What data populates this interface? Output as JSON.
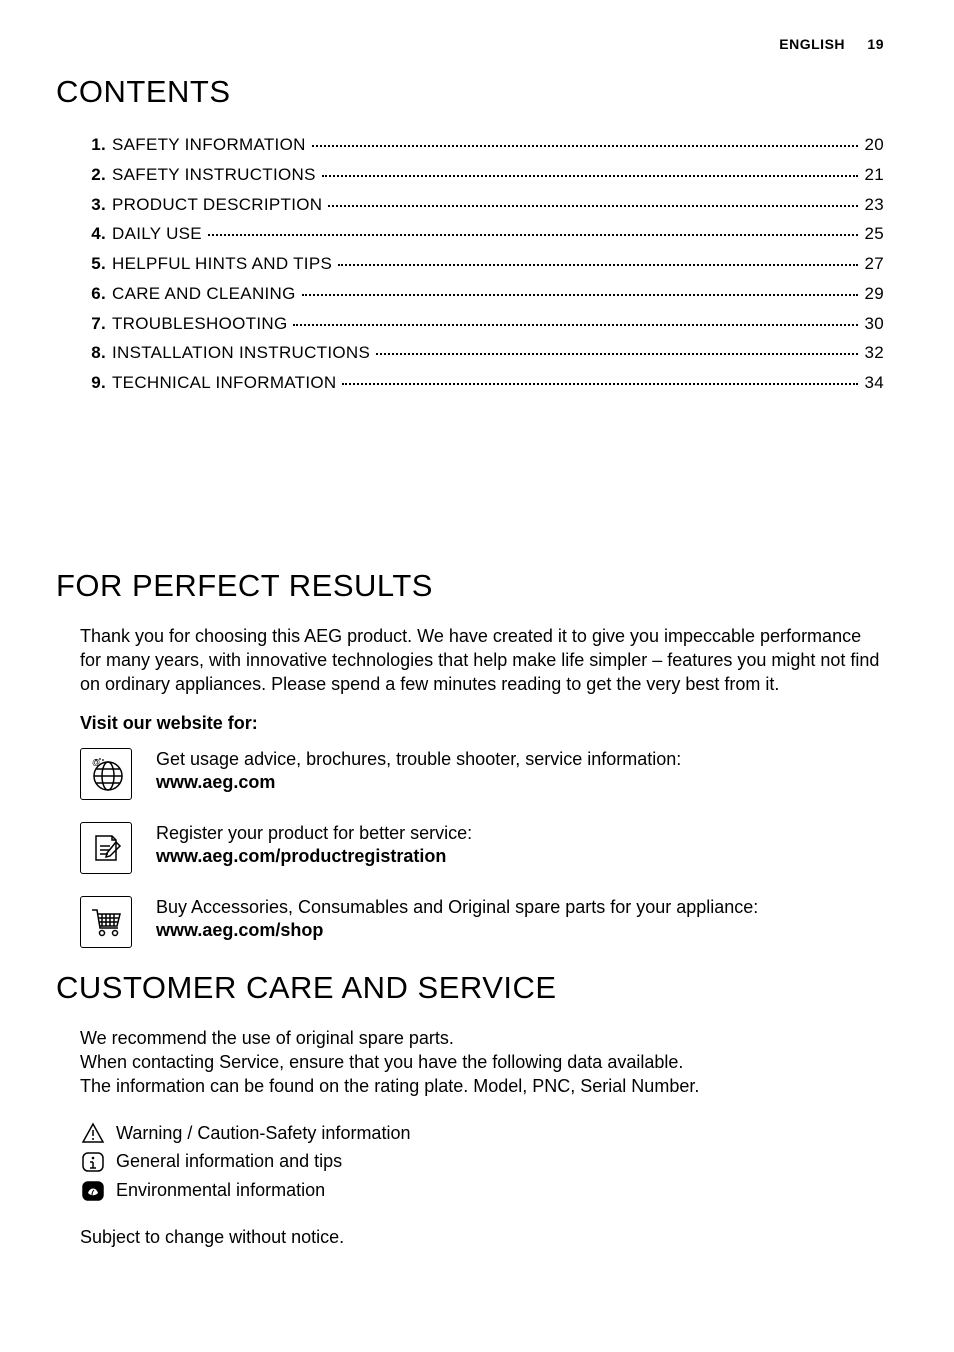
{
  "header": {
    "language": "ENGLISH",
    "page_number": "19"
  },
  "contents": {
    "heading": "CONTENTS",
    "items": [
      {
        "num": "1.",
        "title": " SAFETY INFORMATION",
        "page": "20"
      },
      {
        "num": "2.",
        "title": " SAFETY INSTRUCTIONS",
        "page": "21"
      },
      {
        "num": "3.",
        "title": " PRODUCT DESCRIPTION",
        "page": "23"
      },
      {
        "num": "4.",
        "title": " DAILY USE",
        "page": "25"
      },
      {
        "num": "5.",
        "title": " HELPFUL HINTS AND TIPS",
        "page": "27"
      },
      {
        "num": "6.",
        "title": " CARE AND CLEANING",
        "page": "29"
      },
      {
        "num": "7.",
        "title": " TROUBLESHOOTING",
        "page": "30"
      },
      {
        "num": "8.",
        "title": " INSTALLATION INSTRUCTIONS",
        "page": "32"
      },
      {
        "num": "9.",
        "title": " TECHNICAL INFORMATION",
        "page": "34"
      }
    ]
  },
  "perfect_results": {
    "heading": "FOR PERFECT RESULTS",
    "intro": "Thank you for choosing this AEG product. We have created it to give you impeccable performance for many years, with innovative technologies that help make life simpler – features you might not find on ordinary appliances. Please spend a few minutes reading to get the very best from it.",
    "visit_label": "Visit our website for:",
    "websites": [
      {
        "text": "Get usage advice, brochures, trouble shooter, service information:",
        "url": "www.aeg.com"
      },
      {
        "text": "Register your product for better service:",
        "url": "www.aeg.com/productregistration"
      },
      {
        "text": "Buy Accessories, Consumables and Original spare parts for your appliance:",
        "url": "www.aeg.com/shop"
      }
    ]
  },
  "customer_care": {
    "heading": "CUSTOMER CARE AND SERVICE",
    "body_lines": [
      "We recommend the use of original spare parts.",
      "When contacting Service, ensure that you have the following data available.",
      "The information can be found on the rating plate. Model, PNC, Serial Number."
    ],
    "legend": [
      "Warning / Caution-Safety information",
      "General information and tips",
      "Environmental information"
    ],
    "notice": "Subject to change without notice."
  }
}
